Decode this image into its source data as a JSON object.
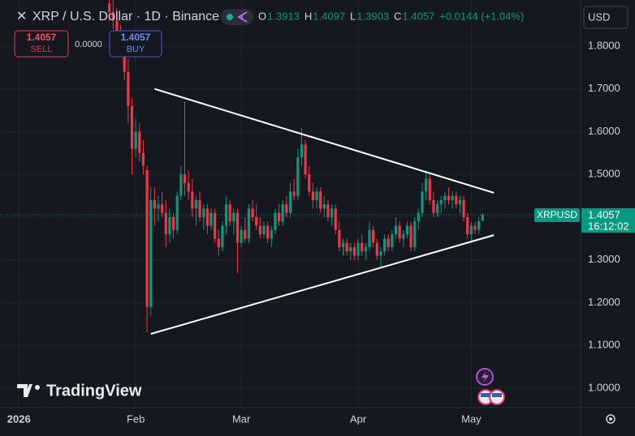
{
  "header": {
    "symbol": "XRP / U.S. Dollar · 1D · Binance",
    "ohlc": [
      {
        "key": "O",
        "value": "1.3913"
      },
      {
        "key": "H",
        "value": "1.4097"
      },
      {
        "key": "L",
        "value": "1.3903"
      },
      {
        "key": "C",
        "value": "1.4057"
      }
    ],
    "change": "+0.0144 (+1.04%)"
  },
  "trade": {
    "sell_price": "1.4057",
    "sell_label": "SELL",
    "spread": "0.0000",
    "buy_price": "1.4057",
    "buy_label": "BUY"
  },
  "currency": "USD",
  "logo": "TradingView",
  "chart_data": {
    "type": "candlestick",
    "up_color": "#089981",
    "down_color": "#f23645",
    "grid": true,
    "xlim": [
      "2025-12-27",
      "2026-05-30"
    ],
    "xticks": [
      {
        "value": "2026-01-01",
        "label": "2026"
      },
      {
        "value": "2026-02-01",
        "label": "Feb"
      },
      {
        "value": "2026-03-01",
        "label": "Mar"
      },
      {
        "value": "2026-04-01",
        "label": "Apr"
      },
      {
        "value": "2026-05-01",
        "label": "May"
      }
    ],
    "ylim": [
      0.9545,
      1.908
    ],
    "yticks": [
      {
        "value": 1.0,
        "label": "1.0000"
      },
      {
        "value": 1.1,
        "label": "1.1000"
      },
      {
        "value": 1.2,
        "label": "1.2000"
      },
      {
        "value": 1.3,
        "label": "1.3000"
      },
      {
        "value": 1.4,
        "label": "1.4000"
      },
      {
        "value": 1.5,
        "label": "1.5000"
      },
      {
        "value": 1.6,
        "label": "1.6000"
      },
      {
        "value": 1.7,
        "label": "1.7000"
      },
      {
        "value": 1.8,
        "label": "1.8000"
      }
    ],
    "x": [
      "2026-01-25",
      "2026-01-26",
      "2026-01-27",
      "2026-01-28",
      "2026-01-29",
      "2026-01-30",
      "2026-01-31",
      "2026-02-01",
      "2026-02-02",
      "2026-02-03",
      "2026-02-04",
      "2026-02-05",
      "2026-02-06",
      "2026-02-07",
      "2026-02-08",
      "2026-02-09",
      "2026-02-10",
      "2026-02-11",
      "2026-02-12",
      "2026-02-13",
      "2026-02-14",
      "2026-02-15",
      "2026-02-16",
      "2026-02-17",
      "2026-02-18",
      "2026-02-19",
      "2026-02-20",
      "2026-02-21",
      "2026-02-22",
      "2026-02-23",
      "2026-02-24",
      "2026-02-25",
      "2026-02-26",
      "2026-02-27",
      "2026-02-28",
      "2026-03-01",
      "2026-03-02",
      "2026-03-03",
      "2026-03-04",
      "2026-03-05",
      "2026-03-06",
      "2026-03-07",
      "2026-03-08",
      "2026-03-09",
      "2026-03-10",
      "2026-03-11",
      "2026-03-12",
      "2026-03-13",
      "2026-03-14",
      "2026-03-15",
      "2026-03-16",
      "2026-03-17",
      "2026-03-18",
      "2026-03-19",
      "2026-03-20",
      "2026-03-21",
      "2026-03-22",
      "2026-03-23",
      "2026-03-24",
      "2026-03-25",
      "2026-03-26",
      "2026-03-27",
      "2026-03-28",
      "2026-03-29",
      "2026-03-30",
      "2026-03-31",
      "2026-04-01",
      "2026-04-02",
      "2026-04-03",
      "2026-04-04",
      "2026-04-05",
      "2026-04-06",
      "2026-04-07",
      "2026-04-08",
      "2026-04-09",
      "2026-04-10",
      "2026-04-11",
      "2026-04-12",
      "2026-04-13",
      "2026-04-14",
      "2026-04-15",
      "2026-04-16",
      "2026-04-17",
      "2026-04-18",
      "2026-04-19",
      "2026-04-20",
      "2026-04-21",
      "2026-04-22",
      "2026-04-23",
      "2026-04-24",
      "2026-04-25",
      "2026-04-26",
      "2026-04-27",
      "2026-04-28",
      "2026-04-29",
      "2026-04-30",
      "2026-05-01",
      "2026-05-02",
      "2026-05-03",
      "2026-05-04"
    ],
    "ohlc": [
      [
        1.9,
        1.93,
        1.86,
        1.88
      ],
      [
        1.88,
        1.91,
        1.84,
        1.86
      ],
      [
        1.86,
        1.89,
        1.8,
        1.82
      ],
      [
        1.82,
        1.85,
        1.78,
        1.8
      ],
      [
        1.8,
        1.83,
        1.72,
        1.74
      ],
      [
        1.74,
        1.77,
        1.62,
        1.66
      ],
      [
        1.66,
        1.68,
        1.5,
        1.56
      ],
      [
        1.56,
        1.63,
        1.54,
        1.6
      ],
      [
        1.6,
        1.62,
        1.53,
        1.55
      ],
      [
        1.55,
        1.58,
        1.5,
        1.52
      ],
      [
        1.51,
        1.52,
        1.13,
        1.19
      ],
      [
        1.19,
        1.47,
        1.17,
        1.44
      ],
      [
        1.44,
        1.47,
        1.38,
        1.42
      ],
      [
        1.42,
        1.45,
        1.39,
        1.43
      ],
      [
        1.43,
        1.46,
        1.4,
        1.41
      ],
      [
        1.41,
        1.44,
        1.33,
        1.36
      ],
      [
        1.36,
        1.42,
        1.34,
        1.4
      ],
      [
        1.4,
        1.41,
        1.35,
        1.37
      ],
      [
        1.37,
        1.46,
        1.36,
        1.45
      ],
      [
        1.45,
        1.52,
        1.44,
        1.5
      ],
      [
        1.5,
        1.67,
        1.45,
        1.48
      ],
      [
        1.48,
        1.51,
        1.44,
        1.46
      ],
      [
        1.46,
        1.49,
        1.4,
        1.42
      ],
      [
        1.42,
        1.45,
        1.38,
        1.44
      ],
      [
        1.44,
        1.46,
        1.39,
        1.4
      ],
      [
        1.4,
        1.43,
        1.37,
        1.42
      ],
      [
        1.42,
        1.43,
        1.36,
        1.38
      ],
      [
        1.38,
        1.42,
        1.37,
        1.41
      ],
      [
        1.41,
        1.42,
        1.34,
        1.35
      ],
      [
        1.35,
        1.37,
        1.31,
        1.33
      ],
      [
        1.33,
        1.39,
        1.32,
        1.38
      ],
      [
        1.38,
        1.45,
        1.36,
        1.43
      ],
      [
        1.43,
        1.44,
        1.38,
        1.39
      ],
      [
        1.39,
        1.42,
        1.36,
        1.41
      ],
      [
        1.41,
        1.42,
        1.27,
        1.34
      ],
      [
        1.34,
        1.38,
        1.33,
        1.37
      ],
      [
        1.37,
        1.4,
        1.34,
        1.35
      ],
      [
        1.35,
        1.43,
        1.34,
        1.42
      ],
      [
        1.42,
        1.44,
        1.39,
        1.4
      ],
      [
        1.4,
        1.43,
        1.37,
        1.38
      ],
      [
        1.38,
        1.4,
        1.35,
        1.36
      ],
      [
        1.36,
        1.39,
        1.35,
        1.38
      ],
      [
        1.38,
        1.39,
        1.34,
        1.35
      ],
      [
        1.35,
        1.38,
        1.33,
        1.37
      ],
      [
        1.37,
        1.42,
        1.36,
        1.41
      ],
      [
        1.41,
        1.43,
        1.38,
        1.39
      ],
      [
        1.39,
        1.44,
        1.38,
        1.43
      ],
      [
        1.43,
        1.45,
        1.4,
        1.41
      ],
      [
        1.41,
        1.48,
        1.4,
        1.46
      ],
      [
        1.46,
        1.49,
        1.44,
        1.45
      ],
      [
        1.45,
        1.56,
        1.44,
        1.54
      ],
      [
        1.54,
        1.61,
        1.52,
        1.57
      ],
      [
        1.57,
        1.58,
        1.49,
        1.5
      ],
      [
        1.5,
        1.52,
        1.45,
        1.46
      ],
      [
        1.46,
        1.48,
        1.42,
        1.44
      ],
      [
        1.44,
        1.47,
        1.42,
        1.46
      ],
      [
        1.46,
        1.47,
        1.41,
        1.42
      ],
      [
        1.42,
        1.45,
        1.4,
        1.43
      ],
      [
        1.43,
        1.44,
        1.39,
        1.4
      ],
      [
        1.4,
        1.43,
        1.38,
        1.42
      ],
      [
        1.42,
        1.43,
        1.36,
        1.37
      ],
      [
        1.37,
        1.39,
        1.32,
        1.33
      ],
      [
        1.33,
        1.35,
        1.31,
        1.34
      ],
      [
        1.34,
        1.35,
        1.31,
        1.32
      ],
      [
        1.32,
        1.34,
        1.3,
        1.33
      ],
      [
        1.33,
        1.34,
        1.3,
        1.31
      ],
      [
        1.31,
        1.35,
        1.3,
        1.34
      ],
      [
        1.34,
        1.36,
        1.31,
        1.32
      ],
      [
        1.32,
        1.34,
        1.3,
        1.33
      ],
      [
        1.33,
        1.39,
        1.32,
        1.37
      ],
      [
        1.37,
        1.38,
        1.33,
        1.34
      ],
      [
        1.34,
        1.35,
        1.3,
        1.31
      ],
      [
        1.31,
        1.33,
        1.28,
        1.32
      ],
      [
        1.32,
        1.36,
        1.31,
        1.35
      ],
      [
        1.35,
        1.36,
        1.32,
        1.33
      ],
      [
        1.33,
        1.37,
        1.32,
        1.36
      ],
      [
        1.36,
        1.4,
        1.35,
        1.38
      ],
      [
        1.38,
        1.39,
        1.34,
        1.35
      ],
      [
        1.35,
        1.37,
        1.33,
        1.36
      ],
      [
        1.36,
        1.39,
        1.35,
        1.38
      ],
      [
        1.38,
        1.39,
        1.32,
        1.33
      ],
      [
        1.33,
        1.4,
        1.32,
        1.39
      ],
      [
        1.39,
        1.42,
        1.37,
        1.41
      ],
      [
        1.41,
        1.48,
        1.4,
        1.46
      ],
      [
        1.46,
        1.51,
        1.44,
        1.49
      ],
      [
        1.49,
        1.5,
        1.43,
        1.44
      ],
      [
        1.44,
        1.46,
        1.4,
        1.41
      ],
      [
        1.41,
        1.44,
        1.4,
        1.43
      ],
      [
        1.43,
        1.45,
        1.41,
        1.44
      ],
      [
        1.44,
        1.46,
        1.42,
        1.45
      ],
      [
        1.45,
        1.47,
        1.43,
        1.44
      ],
      [
        1.44,
        1.46,
        1.42,
        1.45
      ],
      [
        1.45,
        1.46,
        1.42,
        1.43
      ],
      [
        1.43,
        1.45,
        1.41,
        1.44
      ],
      [
        1.44,
        1.45,
        1.39,
        1.4
      ],
      [
        1.4,
        1.41,
        1.35,
        1.36
      ],
      [
        1.36,
        1.39,
        1.34,
        1.38
      ],
      [
        1.38,
        1.39,
        1.36,
        1.37
      ],
      [
        1.37,
        1.4,
        1.36,
        1.39
      ],
      [
        1.3913,
        1.4097,
        1.3903,
        1.4057
      ]
    ],
    "trendlines": [
      {
        "points": [
          [
            "2026-02-06",
            1.7
          ],
          [
            "2026-05-07",
            1.457
          ]
        ]
      },
      {
        "points": [
          [
            "2026-02-05",
            1.127
          ],
          [
            "2026-05-07",
            1.358
          ]
        ]
      }
    ],
    "last_price": 1.4057,
    "price_tag": {
      "symbol": "XRPUSD",
      "countdown": "16:12:02"
    }
  }
}
